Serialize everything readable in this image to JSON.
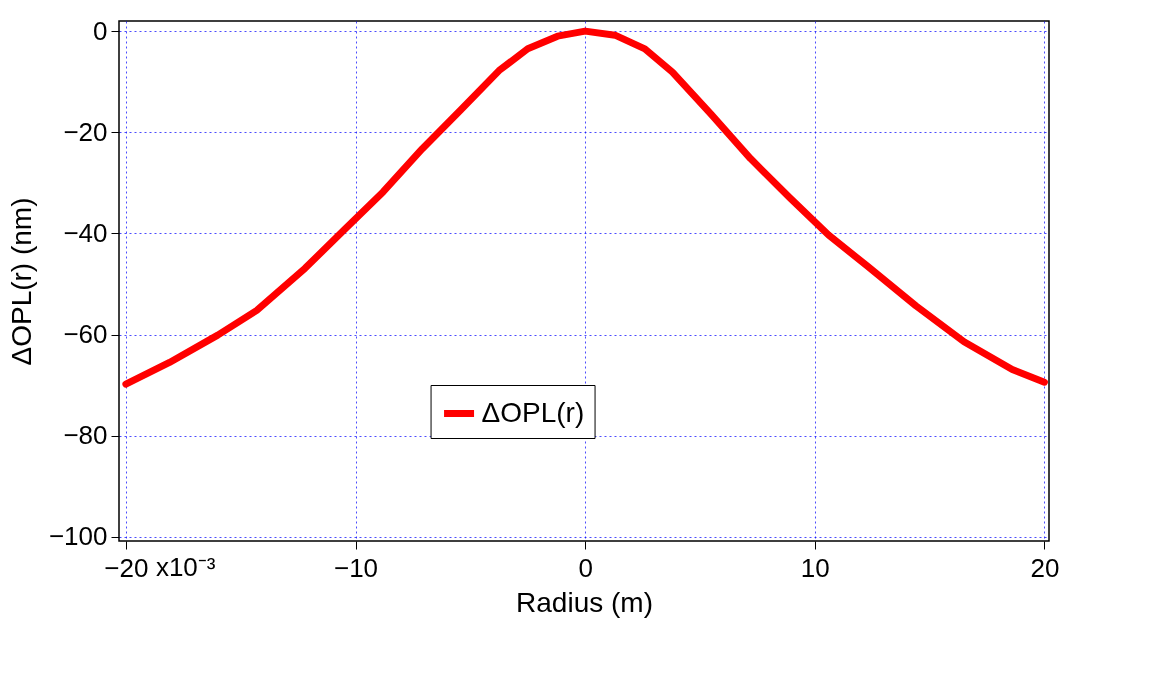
{
  "chart_data": {
    "type": "line",
    "xlabel": "Radius (m)",
    "ylabel": "ΔOPL(r) (nm)",
    "xlim": [
      -20.3,
      20.2
    ],
    "ylim": [
      -100.8,
      2
    ],
    "xticks": [
      -20,
      -10,
      0,
      10,
      20
    ],
    "annotations": [
      "x10⁻³"
    ],
    "yticks": [
      0,
      -20,
      -40,
      -60,
      -80,
      -100
    ],
    "grid": true,
    "legend": "bottom",
    "series": [
      {
        "name": "ΔOPL(r)",
        "color": "#ff0000",
        "x": [
          -20,
          -18.1,
          -16.0,
          -14.3,
          -12.2,
          -10.5,
          -8.8,
          -7.1,
          -5.4,
          -3.75,
          -2.5,
          -1.2,
          0,
          1.3,
          2.6,
          3.8,
          5.5,
          7.2,
          8.9,
          10.6,
          12.3,
          14.4,
          16.5,
          18.6,
          20
        ],
        "values": [
          -69.8,
          -65.5,
          -60.1,
          -55.2,
          -46.9,
          -39.3,
          -31.8,
          -23.3,
          -15.5,
          -7.8,
          -3.5,
          -1.0,
          0,
          -0.8,
          -3.5,
          -8.1,
          -16.5,
          -25.2,
          -32.9,
          -40.3,
          -46.5,
          -54.3,
          -61.4,
          -66.9,
          -69.4
        ]
      }
    ]
  }
}
